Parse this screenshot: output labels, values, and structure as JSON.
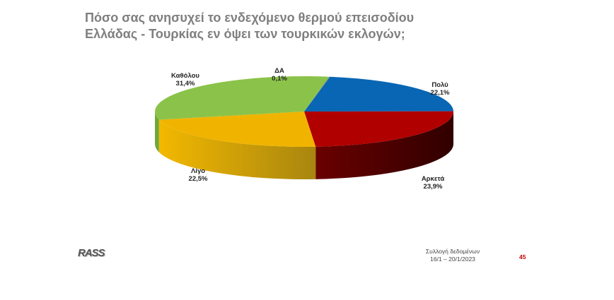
{
  "title": {
    "line1": "Πόσο σας ανησυχεί το ενδεχόμενο θερμού επεισοδίου",
    "line2": "Ελλάδας - Τουρκίας εν όψει των τουρκικών εκλογών;"
  },
  "chart_data": {
    "type": "pie",
    "style": "3d",
    "title": "Πόσο σας ανησυχεί το ενδεχόμενο θερμού επεισοδίου Ελλάδας - Τουρκίας εν όψει των τουρκικών εκλογών;",
    "slices": [
      {
        "label": "ΔΑ",
        "value": 0.1,
        "display": "0,1%",
        "color": "#7f7f7f"
      },
      {
        "label": "Πολύ",
        "value": 22.1,
        "display": "22,1%",
        "color": "#0866b4"
      },
      {
        "label": "Αρκετά",
        "value": 23.9,
        "display": "23,9%",
        "color": "#b00000"
      },
      {
        "label": "Λίγο",
        "value": 22.5,
        "display": "22,5%",
        "color": "#f0b400"
      },
      {
        "label": "Καθόλου",
        "value": 31.4,
        "display": "31,4%",
        "color": "#8bc34a"
      }
    ]
  },
  "footer": {
    "logo": "RASS",
    "source_line1": "Συλλογή δεδομένων",
    "source_line2": "16/1 – 20/1/2023",
    "page_number": "45"
  }
}
